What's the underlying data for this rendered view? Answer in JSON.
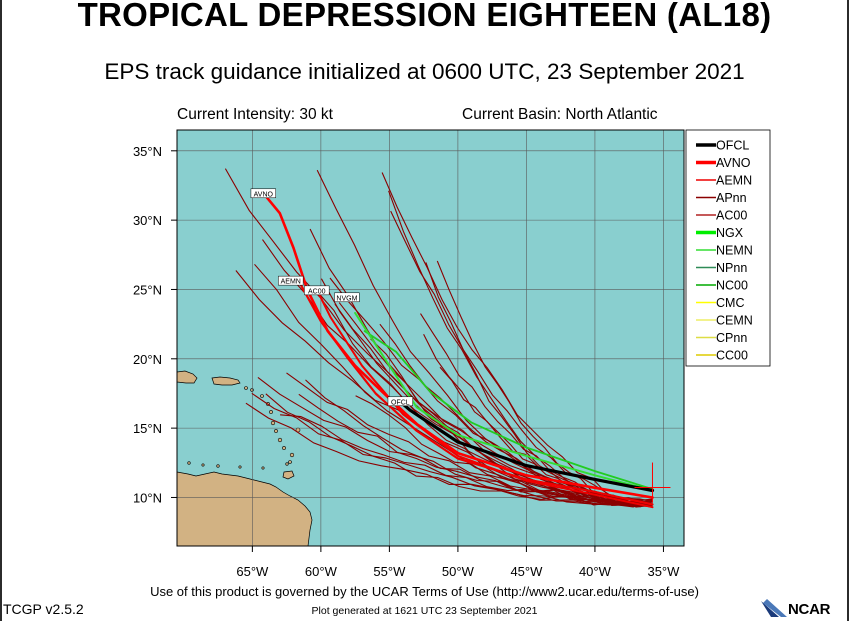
{
  "header": {
    "title": "TROPICAL DEPRESSION EIGHTEEN (AL18)",
    "subtitle": "EPS track guidance initialized at 0600 UTC, 23 September 2021",
    "intensity": "Current Intensity: 30 kt",
    "basin": "Current Basin: North Atlantic"
  },
  "map": {
    "lon_range": [
      -70.5,
      -33.5
    ],
    "lat_range": [
      6.5,
      36.5
    ],
    "lon_ticks": [
      -65,
      -60,
      -55,
      -50,
      -45,
      -40,
      -35
    ],
    "lon_tick_labels": [
      "65°W",
      "60°W",
      "55°W",
      "50°W",
      "45°W",
      "40°W",
      "35°W"
    ],
    "lat_ticks": [
      10,
      15,
      20,
      25,
      30,
      35
    ],
    "lat_tick_labels": [
      "10°N",
      "15°N",
      "20°N",
      "25°N",
      "30°N",
      "35°N"
    ],
    "grid": true,
    "colors": {
      "ocean": "#89cfcf",
      "land": "#d2b283",
      "grid": "#555555"
    }
  },
  "legend": {
    "placement": "top-right",
    "entries": [
      {
        "label": "OFCL",
        "color": "#000000",
        "thick": true
      },
      {
        "label": "AVNO",
        "color": "#ff0000",
        "thick": true
      },
      {
        "label": "AEMN",
        "color": "#ee0000",
        "thick": false
      },
      {
        "label": "APnn",
        "color": "#8b0000",
        "thick": false
      },
      {
        "label": "AC00",
        "color": "#b22222",
        "thick": false
      },
      {
        "label": "NGX",
        "color": "#00ee00",
        "thick": true
      },
      {
        "label": "NEMN",
        "color": "#33dd33",
        "thick": false
      },
      {
        "label": "NPnn",
        "color": "#2e8b57",
        "thick": false
      },
      {
        "label": "NC00",
        "color": "#00aa00",
        "thick": false
      },
      {
        "label": "CMC",
        "color": "#ffff00",
        "thick": false
      },
      {
        "label": "CEMN",
        "color": "#eeee66",
        "thick": false
      },
      {
        "label": "CPnn",
        "color": "#dddd44",
        "thick": false
      },
      {
        "label": "CC00",
        "color": "#ddcc00",
        "thick": false
      }
    ]
  },
  "chart_data": {
    "type": "line",
    "current_position": {
      "lon": -35.8,
      "lat": 10.5
    },
    "series": [
      {
        "name": "OFCL",
        "color": "#000000",
        "width": 3.2,
        "points": [
          [
            -35.8,
            10.5
          ],
          [
            -40,
            11.3
          ],
          [
            -45,
            12.3
          ],
          [
            -50,
            14.0
          ],
          [
            -53.5,
            16.3
          ],
          [
            -54.2,
            16.9
          ]
        ]
      },
      {
        "name": "AVNO",
        "color": "#ff0000",
        "width": 2.6,
        "points": [
          [
            -35.8,
            10.0
          ],
          [
            -40,
            10.7
          ],
          [
            -45,
            11.6
          ],
          [
            -50,
            13.2
          ],
          [
            -53,
            15.3
          ],
          [
            -55.5,
            17.6
          ],
          [
            -57.5,
            19.5
          ],
          [
            -59.5,
            22.0
          ],
          [
            -61,
            25.0
          ],
          [
            -62,
            28.0
          ],
          [
            -63,
            30.5
          ],
          [
            -64,
            31.7
          ]
        ]
      },
      {
        "name": "AEMN",
        "color": "#ee0000",
        "width": 2.2,
        "points": [
          [
            -35.8,
            9.5
          ],
          [
            -40,
            10.4
          ],
          [
            -45,
            11.3
          ],
          [
            -50,
            12.8
          ],
          [
            -53,
            14.8
          ],
          [
            -56,
            17.5
          ],
          [
            -58,
            20.0
          ],
          [
            -60,
            22.7
          ],
          [
            -61.5,
            25.4
          ]
        ]
      },
      {
        "name": "AC00",
        "color": "#ee0000",
        "width": 2.0,
        "points": [
          [
            -35.8,
            9.3
          ],
          [
            -40,
            10.2
          ],
          [
            -45,
            11.2
          ],
          [
            -50,
            13.0
          ],
          [
            -54,
            16.0
          ],
          [
            -57,
            19.5
          ],
          [
            -59.3,
            23.0
          ],
          [
            -60.3,
            25.0
          ]
        ]
      },
      {
        "name": "NGX",
        "color": "#33dd33",
        "width": 2.0,
        "points": [
          [
            -35.8,
            10.5
          ],
          [
            -40,
            11.6
          ],
          [
            -45,
            13.0
          ],
          [
            -50,
            14.5
          ],
          [
            -53,
            16.5
          ],
          [
            -55,
            19.5
          ],
          [
            -57.5,
            23.3
          ]
        ]
      },
      {
        "name": "NEMN",
        "color": "#22cc22",
        "width": 1.8,
        "points": [
          [
            -35.8,
            10.6
          ],
          [
            -40,
            11.9
          ],
          [
            -45,
            13.6
          ],
          [
            -49,
            15.4
          ],
          [
            -52,
            17.6
          ],
          [
            -54.5,
            20.5
          ],
          [
            -56.8,
            22.0
          ]
        ]
      }
    ],
    "ensemble_member_count": 30,
    "labels": [
      {
        "text": "AVNO",
        "lon": -64.2,
        "lat": 31.9
      },
      {
        "text": "AEMN",
        "lon": -62.2,
        "lat": 25.6
      },
      {
        "text": "AC00",
        "lon": -60.3,
        "lat": 24.9
      },
      {
        "text": "NVGM",
        "lon": -58.1,
        "lat": 24.4
      },
      {
        "text": "OFCL",
        "lon": -54.2,
        "lat": 16.9
      }
    ]
  },
  "footer": {
    "terms": "Use of this product is governed by the UCAR Terms of Use (http://www2.ucar.edu/terms-of-use)",
    "version": "TCGP v2.5.2",
    "generated": "Plot generated at 1621 UTC  23 September 2021",
    "logo": "NCAR"
  }
}
